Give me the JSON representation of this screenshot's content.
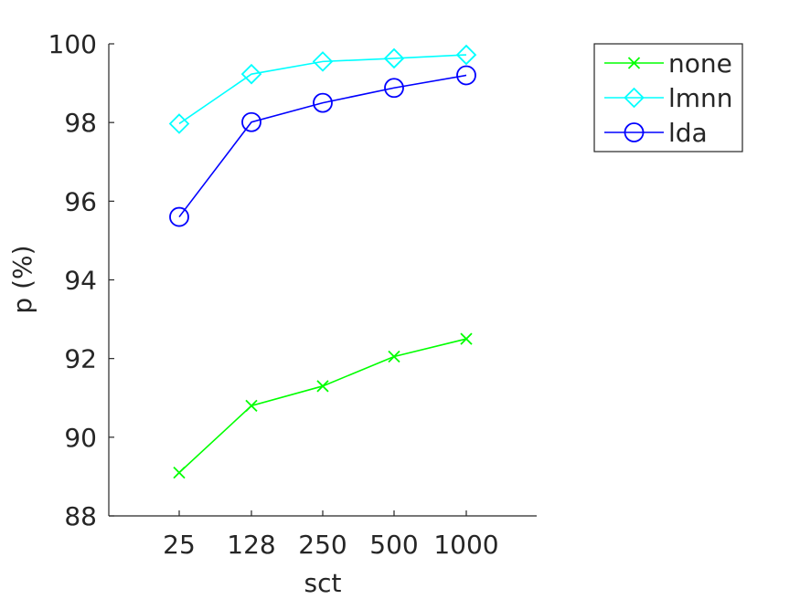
{
  "chart_data": {
    "type": "line",
    "title": "",
    "xlabel": "sct",
    "ylabel": "p (%)",
    "x": [
      25,
      128,
      250,
      500,
      1000
    ],
    "x_tick_labels": [
      "25",
      "128",
      "250",
      "500",
      "1000"
    ],
    "ylim": [
      88,
      100
    ],
    "y_ticks": [
      88,
      90,
      92,
      94,
      96,
      98,
      100
    ],
    "grid": false,
    "legend_position": "top-right, outside the axes",
    "series": [
      {
        "name": "none",
        "values": [
          89.1,
          90.8,
          91.3,
          92.05,
          92.5
        ],
        "color": "#00ff00",
        "marker": "x"
      },
      {
        "name": "lmnn",
        "values": [
          97.97,
          99.23,
          99.55,
          99.63,
          99.72
        ],
        "color": "#00ffff",
        "marker": "diamond"
      },
      {
        "name": "lda",
        "values": [
          95.6,
          98.01,
          98.5,
          98.88,
          99.2
        ],
        "color": "#0000ff",
        "marker": "circle"
      }
    ]
  }
}
